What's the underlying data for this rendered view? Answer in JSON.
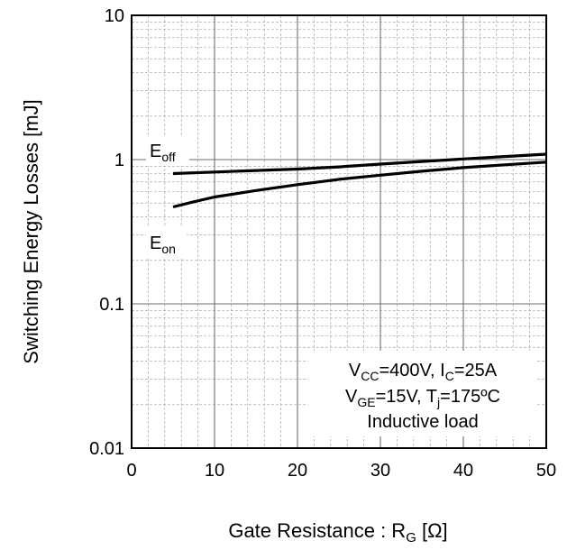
{
  "chart_data": {
    "type": "line",
    "xlabel": {
      "main": "Gate Resistance : R",
      "sub": "G",
      "tail": " [Ω]"
    },
    "ylabel": "Switching Energy Losses [mJ]",
    "xlim": [
      0,
      50
    ],
    "ylim": [
      0.01,
      10
    ],
    "yscale": "log",
    "grid": true,
    "x_ticks": [
      "0",
      "10",
      "20",
      "30",
      "40",
      "50"
    ],
    "y_ticks": [
      "0.01",
      "0.1",
      "1",
      "10"
    ],
    "series": [
      {
        "name": {
          "main": "E",
          "sub": "off"
        },
        "color": "#000000",
        "x": [
          5,
          10,
          15,
          20,
          25,
          30,
          35,
          40,
          45,
          50
        ],
        "y": [
          0.8,
          0.82,
          0.84,
          0.86,
          0.89,
          0.93,
          0.97,
          1.01,
          1.05,
          1.09
        ]
      },
      {
        "name": {
          "main": "E",
          "sub": "on"
        },
        "color": "#000000",
        "x": [
          5,
          7.5,
          10,
          12.5,
          15,
          20,
          25,
          30,
          35,
          40,
          45,
          50
        ],
        "y": [
          0.47,
          0.51,
          0.55,
          0.58,
          0.61,
          0.67,
          0.73,
          0.78,
          0.83,
          0.88,
          0.92,
          0.96
        ]
      }
    ],
    "annotation": [
      [
        {
          "t": "V"
        },
        {
          "t": "CC",
          "sub": true
        },
        {
          "t": "=400V, I"
        },
        {
          "t": "C",
          "sub": true
        },
        {
          "t": "=25A"
        }
      ],
      [
        {
          "t": "V"
        },
        {
          "t": "GE",
          "sub": true
        },
        {
          "t": "=15V, T"
        },
        {
          "t": "j",
          "sub": true
        },
        {
          "t": "=175ºC"
        }
      ],
      [
        {
          "t": "Inductive load"
        }
      ]
    ]
  }
}
